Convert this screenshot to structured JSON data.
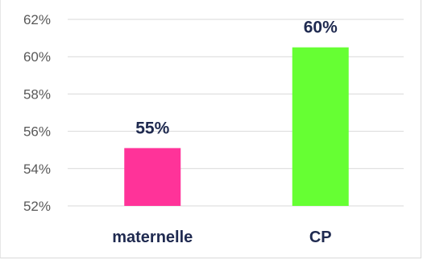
{
  "chart_data": {
    "type": "bar",
    "categories": [
      "maternelle",
      "CP"
    ],
    "values": [
      55.1,
      60.5
    ],
    "data_labels": [
      "55%",
      "60%"
    ],
    "colors": [
      "#ff3399",
      "#66ff33"
    ],
    "title": "",
    "xlabel": "",
    "ylabel": "",
    "ylim": [
      52,
      62
    ],
    "yticks": [
      52,
      54,
      56,
      58,
      60,
      62
    ],
    "ytick_labels": [
      "52%",
      "54%",
      "56%",
      "58%",
      "60%",
      "62%"
    ],
    "grid": true,
    "legend": "none"
  }
}
